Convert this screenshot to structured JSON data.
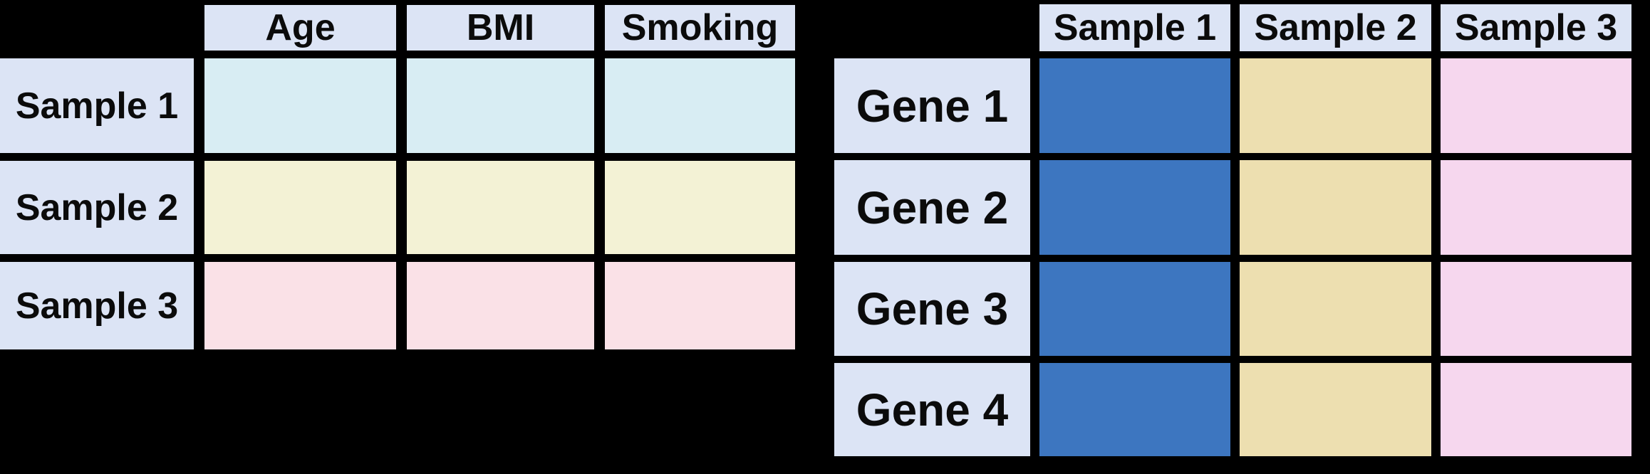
{
  "canvas": {
    "background": "#000000"
  },
  "palette": {
    "label_cell_bg": "#dce4f5",
    "text_color": "#0b0b0b",
    "covariate_row_colors": [
      "#d8edf3",
      "#f3f2d5",
      "#fae1e7"
    ],
    "expression_column_colors": [
      "#3d76c0",
      "#eddfb0",
      "#f6d7ee"
    ]
  },
  "covariates_table": {
    "column_headers": [
      "Age",
      "BMI",
      "Smoking"
    ],
    "rows": [
      {
        "label": "Sample 1",
        "cell_color": "#d8edf3"
      },
      {
        "label": "Sample 2",
        "cell_color": "#f3f2d5"
      },
      {
        "label": "Sample 3",
        "cell_color": "#fae1e7"
      }
    ]
  },
  "expression_table": {
    "column_headers": [
      {
        "label": "Sample 1",
        "cell_color": "#3d76c0"
      },
      {
        "label": "Sample 2",
        "cell_color": "#eddfb0"
      },
      {
        "label": "Sample 3",
        "cell_color": "#f6d7ee"
      }
    ],
    "row_headers": [
      "Gene 1",
      "Gene 2",
      "Gene 3",
      "Gene 4"
    ]
  }
}
